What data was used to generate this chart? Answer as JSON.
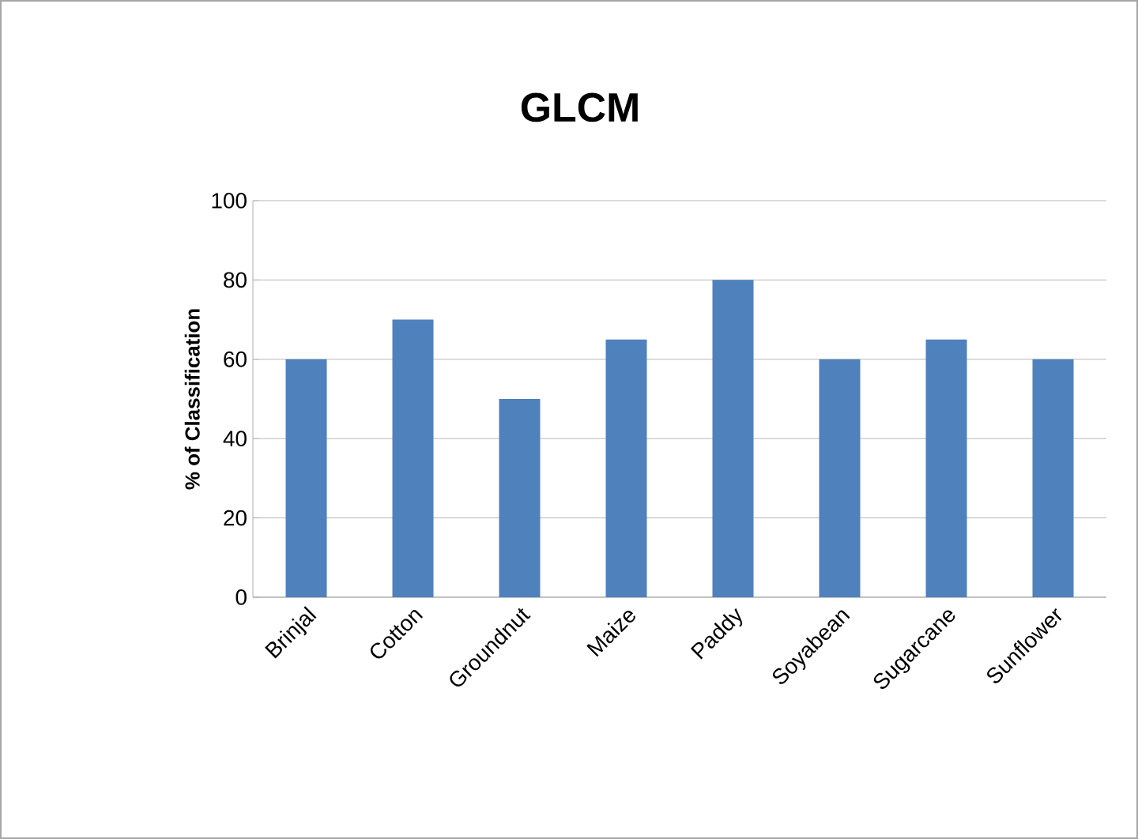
{
  "chart_data": {
    "type": "bar",
    "title": "GLCM",
    "ylabel": "% of Classification",
    "categories": [
      "Brinjal",
      "Cotton",
      "Groundnut",
      "Maize",
      "Paddy",
      "Soyabean",
      "Sugarcane",
      "Sunflower"
    ],
    "values": [
      60,
      70,
      50,
      65,
      80,
      60,
      65,
      60
    ],
    "color": "#4f81bd",
    "ylim": [
      0,
      100
    ],
    "yticks": [
      0,
      20,
      40,
      60,
      80,
      100
    ],
    "grid": "y"
  }
}
